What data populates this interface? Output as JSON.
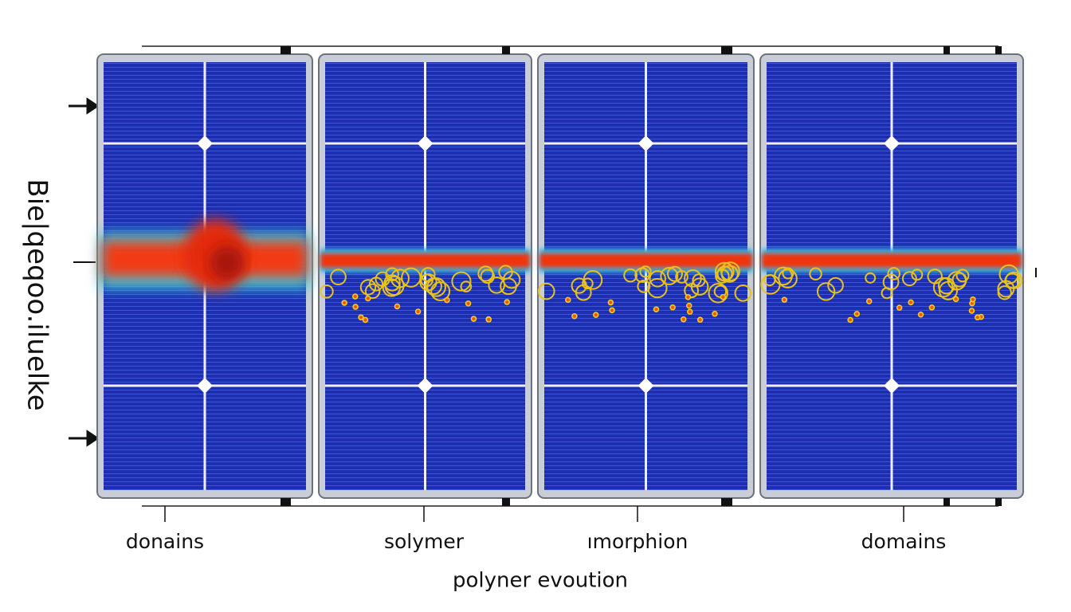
{
  "y_axis_title": "Bie|qeqoo.iluelke",
  "panels": [
    {
      "label": "donains"
    },
    {
      "label": "solymer"
    },
    {
      "label": "ımorphion"
    },
    {
      "label": "domains"
    }
  ],
  "x_axis_title": "polyner evoution"
}
